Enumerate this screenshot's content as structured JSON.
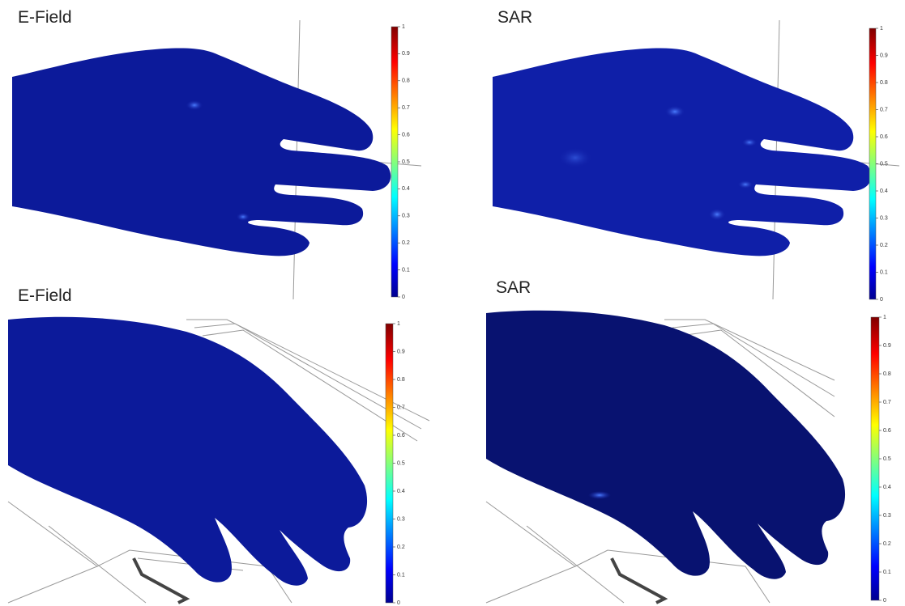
{
  "panels": [
    {
      "title": "E-Field",
      "colorbar": {
        "ylim": [
          0,
          1
        ],
        "yticks": [
          0,
          0.1,
          0.2,
          0.3,
          0.4,
          0.5,
          0.6,
          0.7,
          0.8,
          0.9,
          1
        ]
      }
    },
    {
      "title": "SAR",
      "colorbar": {
        "ylim": [
          0,
          1
        ],
        "yticks": [
          0,
          0.1,
          0.2,
          0.3,
          0.4,
          0.5,
          0.6,
          0.7,
          0.8,
          0.9,
          1
        ]
      }
    },
    {
      "title": "E-Field",
      "colorbar": {
        "ylim": [
          0,
          1
        ],
        "yticks": [
          0,
          0.1,
          0.2,
          0.3,
          0.4,
          0.5,
          0.6,
          0.7,
          0.8,
          0.9,
          1
        ]
      }
    },
    {
      "title": "SAR",
      "colorbar": {
        "ylim": [
          0,
          1
        ],
        "yticks": [
          0,
          0.1,
          0.2,
          0.3,
          0.4,
          0.5,
          0.6,
          0.7,
          0.8,
          0.9,
          1
        ]
      }
    }
  ]
}
